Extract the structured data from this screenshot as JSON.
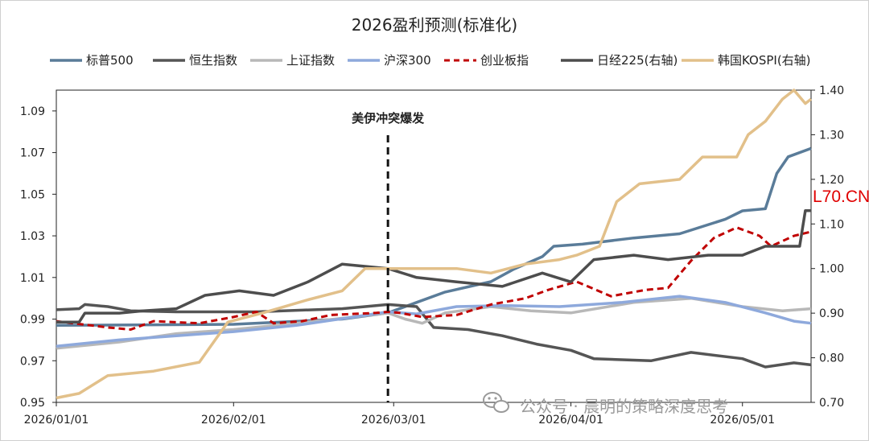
{
  "chart_data": {
    "type": "line",
    "title": "2026盈利预测(标准化)",
    "x_ticks": [
      "2026/01/01",
      "2026/02/01",
      "2026/03/01",
      "2026/04/01",
      "2026/05/01"
    ],
    "x_range": [
      "2026/01/01",
      "2026/05/13"
    ],
    "y_left": {
      "ylim": [
        0.95,
        1.1
      ],
      "ticks": [
        "0.95",
        "0.97",
        "0.99",
        "1.01",
        "1.03",
        "1.05",
        "1.07",
        "1.09"
      ]
    },
    "y_right": {
      "ylim": [
        0.7,
        1.4
      ],
      "ticks": [
        "0.70",
        "0.80",
        "0.90",
        "1.00",
        "1.10",
        "1.20",
        "1.30",
        "1.40"
      ]
    },
    "grid": false,
    "legend_position": "top",
    "annotation": {
      "label": "美伊冲突爆发",
      "x": "2026/02/28"
    },
    "series": [
      {
        "name": "标普500",
        "axis": "left",
        "color": "#5a7c99",
        "style": "solid",
        "points": [
          [
            "2026/01/01",
            0.987
          ],
          [
            "2026/02/01",
            0.9875
          ],
          [
            "2026/02/20",
            0.99
          ],
          [
            "2026/02/28",
            0.993
          ],
          [
            "2026/03/05",
            0.998
          ],
          [
            "2026/03/10",
            1.003
          ],
          [
            "2026/03/18",
            1.008
          ],
          [
            "2026/03/22",
            1.014
          ],
          [
            "2026/03/27",
            1.02
          ],
          [
            "2026/03/29",
            1.025
          ],
          [
            "2026/04/03",
            1.026
          ],
          [
            "2026/04/12",
            1.029
          ],
          [
            "2026/04/20",
            1.031
          ],
          [
            "2026/04/28",
            1.038
          ],
          [
            "2026/05/01",
            1.042
          ],
          [
            "2026/05/05",
            1.043
          ],
          [
            "2026/05/07",
            1.06
          ],
          [
            "2026/05/09",
            1.068
          ],
          [
            "2026/05/13",
            1.072
          ]
        ]
      },
      {
        "name": "恒生指数",
        "axis": "left",
        "color": "#555555",
        "style": "solid",
        "points": [
          [
            "2026/01/01",
            0.9945
          ],
          [
            "2026/01/05",
            0.995
          ],
          [
            "2026/01/06",
            0.997
          ],
          [
            "2026/01/10",
            0.996
          ],
          [
            "2026/01/14",
            0.994
          ],
          [
            "2026/01/22",
            0.9935
          ],
          [
            "2026/02/05",
            0.9935
          ],
          [
            "2026/02/20",
            0.995
          ],
          [
            "2026/02/28",
            0.997
          ],
          [
            "2026/03/05",
            0.996
          ],
          [
            "2026/03/08",
            0.986
          ],
          [
            "2026/03/14",
            0.985
          ],
          [
            "2026/03/20",
            0.982
          ],
          [
            "2026/03/26",
            0.978
          ],
          [
            "2026/04/01",
            0.975
          ],
          [
            "2026/04/05",
            0.971
          ],
          [
            "2026/04/15",
            0.97
          ],
          [
            "2026/04/22",
            0.974
          ],
          [
            "2026/05/01",
            0.971
          ],
          [
            "2026/05/05",
            0.967
          ],
          [
            "2026/05/10",
            0.969
          ],
          [
            "2026/05/13",
            0.968
          ]
        ]
      },
      {
        "name": "上证指数",
        "axis": "left",
        "color": "#b8b8b8",
        "style": "solid",
        "points": [
          [
            "2026/01/01",
            0.976
          ],
          [
            "2026/01/12",
            0.979
          ],
          [
            "2026/01/22",
            0.983
          ],
          [
            "2026/02/01",
            0.985
          ],
          [
            "2026/02/12",
            0.988
          ],
          [
            "2026/02/22",
            0.991
          ],
          [
            "2026/02/28",
            0.993
          ],
          [
            "2026/03/03",
            0.99
          ],
          [
            "2026/03/06",
            0.988
          ],
          [
            "2026/03/10",
            0.993
          ],
          [
            "2026/03/18",
            0.996
          ],
          [
            "2026/03/25",
            0.994
          ],
          [
            "2026/04/01",
            0.993
          ],
          [
            "2026/04/12",
            0.998
          ],
          [
            "2026/04/22",
            1.0
          ],
          [
            "2026/05/01",
            0.996
          ],
          [
            "2026/05/08",
            0.994
          ],
          [
            "2026/05/13",
            0.995
          ]
        ]
      },
      {
        "name": "沪深300",
        "axis": "left",
        "color": "#8ea9dc",
        "style": "solid",
        "points": [
          [
            "2026/01/01",
            0.977
          ],
          [
            "2026/01/12",
            0.98
          ],
          [
            "2026/01/22",
            0.982
          ],
          [
            "2026/02/01",
            0.984
          ],
          [
            "2026/02/12",
            0.987
          ],
          [
            "2026/02/22",
            0.991
          ],
          [
            "2026/02/28",
            0.9935
          ],
          [
            "2026/03/05",
            0.9925
          ],
          [
            "2026/03/12",
            0.996
          ],
          [
            "2026/03/20",
            0.9965
          ],
          [
            "2026/03/30",
            0.996
          ],
          [
            "2026/04/10",
            0.998
          ],
          [
            "2026/04/20",
            1.001
          ],
          [
            "2026/04/28",
            0.998
          ],
          [
            "2026/05/05",
            0.993
          ],
          [
            "2026/05/10",
            0.989
          ],
          [
            "2026/05/13",
            0.988
          ]
        ]
      },
      {
        "name": "创业板指",
        "axis": "left",
        "color": "#c00000",
        "style": "dashed",
        "points": [
          [
            "2026/01/01",
            0.989
          ],
          [
            "2026/01/10",
            0.986
          ],
          [
            "2026/01/14",
            0.985
          ],
          [
            "2026/01/18",
            0.989
          ],
          [
            "2026/01/26",
            0.988
          ],
          [
            "2026/02/01",
            0.991
          ],
          [
            "2026/02/05",
            0.9935
          ],
          [
            "2026/02/08",
            0.988
          ],
          [
            "2026/02/13",
            0.989
          ],
          [
            "2026/02/18",
            0.992
          ],
          [
            "2026/02/26",
            0.993
          ],
          [
            "2026/02/28",
            0.9935
          ],
          [
            "2026/03/02",
            0.993
          ],
          [
            "2026/03/06",
            0.991
          ],
          [
            "2026/03/12",
            0.992
          ],
          [
            "2026/03/18",
            0.997
          ],
          [
            "2026/03/24",
            1.0
          ],
          [
            "2026/03/28",
            1.004
          ],
          [
            "2026/04/02",
            1.008
          ],
          [
            "2026/04/08",
            1.001
          ],
          [
            "2026/04/14",
            1.004
          ],
          [
            "2026/04/18",
            1.005
          ],
          [
            "2026/04/22",
            1.018
          ],
          [
            "2026/04/26",
            1.029
          ],
          [
            "2026/04/30",
            1.034
          ],
          [
            "2026/05/04",
            1.03
          ],
          [
            "2026/05/06",
            1.025
          ],
          [
            "2026/05/10",
            1.03
          ],
          [
            "2026/05/13",
            1.032
          ]
        ]
      },
      {
        "name": "日经225(右轴)",
        "axis": "right",
        "color": "#4d4d4d",
        "style": "solid",
        "points": [
          [
            "2026/01/01",
            0.88
          ],
          [
            "2026/01/05",
            0.88
          ],
          [
            "2026/01/06",
            0.9
          ],
          [
            "2026/01/12",
            0.9
          ],
          [
            "2026/01/16",
            0.905
          ],
          [
            "2026/01/22",
            0.91
          ],
          [
            "2026/01/27",
            0.94
          ],
          [
            "2026/02/02",
            0.95
          ],
          [
            "2026/02/08",
            0.94
          ],
          [
            "2026/02/14",
            0.97
          ],
          [
            "2026/02/20",
            1.01
          ],
          [
            "2026/02/28",
            1.0
          ],
          [
            "2026/03/05",
            0.98
          ],
          [
            "2026/03/12",
            0.97
          ],
          [
            "2026/03/20",
            0.96
          ],
          [
            "2026/03/27",
            0.99
          ],
          [
            "2026/04/01",
            0.97
          ],
          [
            "2026/04/05",
            1.02
          ],
          [
            "2026/04/12",
            1.03
          ],
          [
            "2026/04/18",
            1.02
          ],
          [
            "2026/04/25",
            1.03
          ],
          [
            "2026/05/01",
            1.03
          ],
          [
            "2026/05/05",
            1.05
          ],
          [
            "2026/05/08",
            1.05
          ],
          [
            "2026/05/11",
            1.05
          ],
          [
            "2026/05/12",
            1.13
          ],
          [
            "2026/05/13",
            1.13
          ]
        ]
      },
      {
        "name": "韩国KOSPI(右轴)",
        "axis": "right",
        "color": "#e2c08a",
        "style": "solid",
        "points": [
          [
            "2026/01/01",
            0.71
          ],
          [
            "2026/01/05",
            0.72
          ],
          [
            "2026/01/10",
            0.76
          ],
          [
            "2026/01/18",
            0.77
          ],
          [
            "2026/01/26",
            0.79
          ],
          [
            "2026/01/31",
            0.88
          ],
          [
            "2026/02/06",
            0.9
          ],
          [
            "2026/02/14",
            0.93
          ],
          [
            "2026/02/20",
            0.95
          ],
          [
            "2026/02/24",
            1.0
          ],
          [
            "2026/02/28",
            1.0
          ],
          [
            "2026/03/05",
            1.0
          ],
          [
            "2026/03/12",
            1.0
          ],
          [
            "2026/03/18",
            0.99
          ],
          [
            "2026/03/24",
            1.01
          ],
          [
            "2026/03/30",
            1.02
          ],
          [
            "2026/04/02",
            1.03
          ],
          [
            "2026/04/06",
            1.05
          ],
          [
            "2026/04/09",
            1.15
          ],
          [
            "2026/04/13",
            1.19
          ],
          [
            "2026/04/20",
            1.2
          ],
          [
            "2026/04/24",
            1.25
          ],
          [
            "2026/04/30",
            1.25
          ],
          [
            "2026/05/02",
            1.3
          ],
          [
            "2026/05/05",
            1.33
          ],
          [
            "2026/05/08",
            1.38
          ],
          [
            "2026/05/10",
            1.4
          ],
          [
            "2026/05/12",
            1.37
          ],
          [
            "2026/05/13",
            1.38
          ]
        ]
      }
    ]
  },
  "watermark": {
    "text": "公众号 · 晨明的策略深度思考",
    "icon": "wechat-icon"
  },
  "site_mark": "L70.CN"
}
